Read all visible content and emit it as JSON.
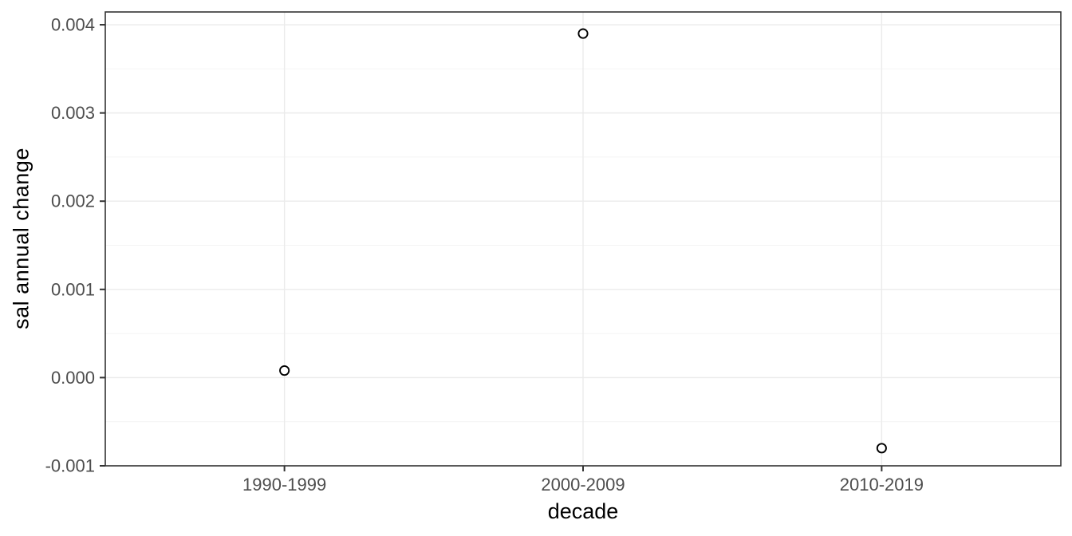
{
  "chart_data": {
    "type": "scatter",
    "title": "",
    "xlabel": "decade",
    "ylabel": "sal annual change",
    "categories": [
      "1990-1999",
      "2000-2009",
      "2010-2019"
    ],
    "values": [
      8e-05,
      0.0039,
      -0.0008
    ],
    "y_ticks": [
      -0.001,
      0.0,
      0.001,
      0.002,
      0.003,
      0.004
    ],
    "y_tick_labels": [
      "-0.001",
      "0.000",
      "0.001",
      "0.002",
      "0.003",
      "0.004"
    ],
    "y_minor_ticks": [
      -0.0005,
      0.0005,
      0.0015,
      0.0025,
      0.0035
    ],
    "ylim": [
      -0.001,
      0.004145
    ],
    "grid": true,
    "legend": false,
    "marker": "open-circle",
    "colors": {
      "background": "#ffffff",
      "panel_background": "#ffffff",
      "panel_border": "#333333",
      "grid_major": "#ebebeb",
      "grid_minor": "#f4f4f4",
      "tick_mark": "#333333",
      "tick_label": "#4d4d4d",
      "axis_title": "#000000",
      "point_stroke": "#000000",
      "point_fill": "#ffffff"
    }
  }
}
